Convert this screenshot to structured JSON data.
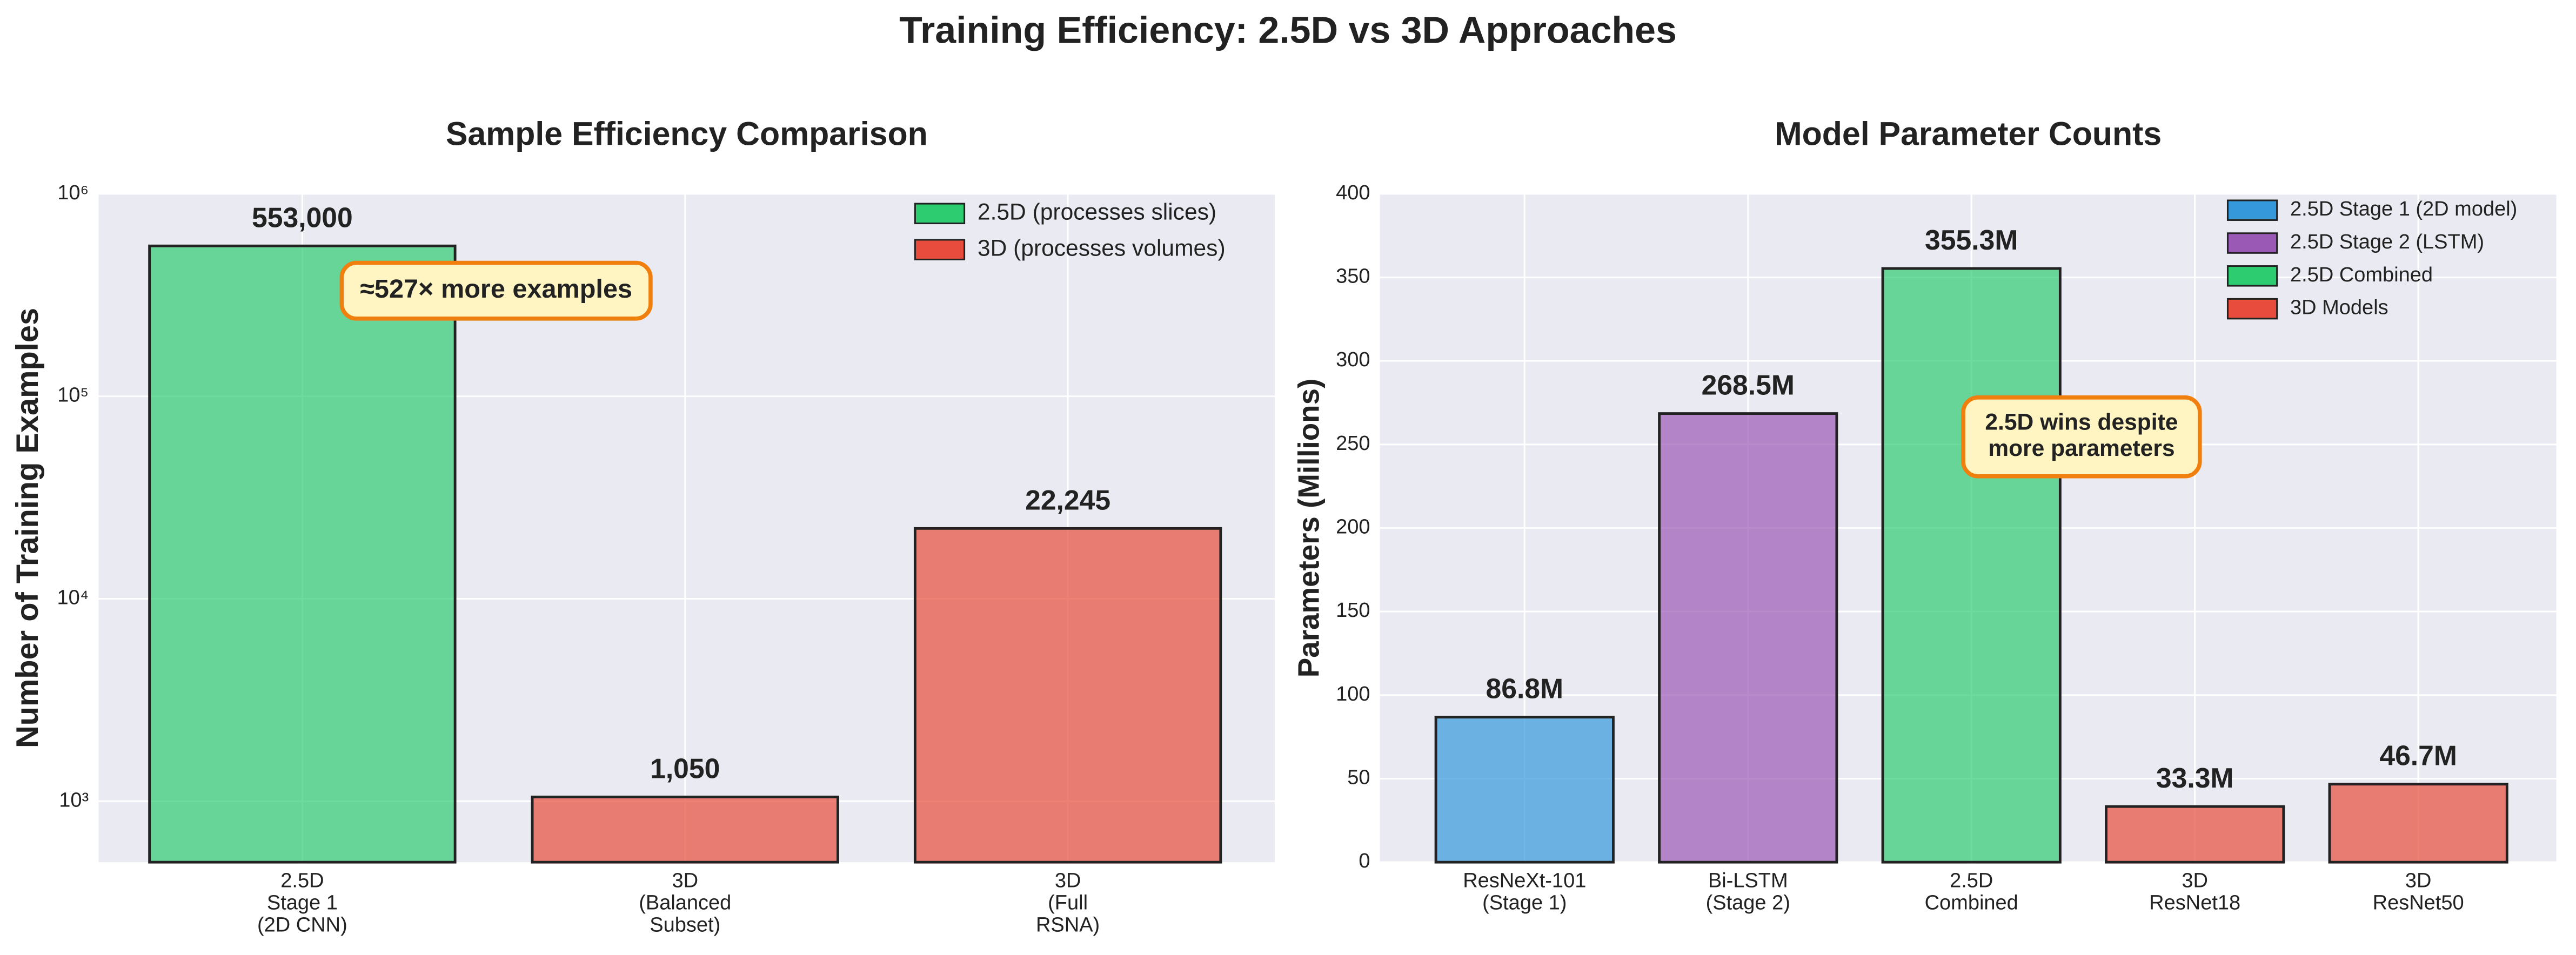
{
  "title": "Training Efficiency: 2.5D vs 3D Approaches",
  "chart_data": [
    {
      "type": "bar",
      "title": "Sample Efficiency Comparison",
      "ylabel": "Number of Training Examples",
      "yscale": "log",
      "ylim": [
        500,
        1000000
      ],
      "yticks": [
        {
          "value": 1000,
          "label": "10³"
        },
        {
          "value": 10000,
          "label": "10⁴"
        },
        {
          "value": 100000,
          "label": "10⁵"
        },
        {
          "value": 1000000,
          "label": "10⁶"
        }
      ],
      "grid": true,
      "legend": "upper right",
      "categories": [
        "2.5D\nStage 1\n(2D CNN)",
        "3D\n(Balanced\nSubset)",
        "3D\n(Full\nRSNA)"
      ],
      "series": [
        {
          "name": "2.5D (processes slices)",
          "color": "#2ecc71",
          "values": [
            553000,
            null,
            null
          ],
          "value_labels": [
            "553,000",
            null,
            null
          ]
        },
        {
          "name": "3D (processes volumes)",
          "color": "#e74c3c",
          "values": [
            null,
            1050,
            22245
          ],
          "value_labels": [
            null,
            "1,050",
            "22,245"
          ]
        }
      ],
      "annotation": "≈527× more examples"
    },
    {
      "type": "bar",
      "title": "Model Parameter Counts",
      "ylabel": "Parameters (Millions)",
      "ylim": [
        0,
        400
      ],
      "yticks": [
        0,
        50,
        100,
        150,
        200,
        250,
        300,
        350,
        400
      ],
      "grid": true,
      "legend": "upper right",
      "categories": [
        "ResNeXt-101\n(Stage 1)",
        "Bi-LSTM\n(Stage 2)",
        "2.5D\nCombined",
        "3D\nResNet18",
        "3D\nResNet50"
      ],
      "series": [
        {
          "name": "2.5D Stage 1 (2D model)",
          "color": "#3498db",
          "values": [
            86.8,
            null,
            null,
            null,
            null
          ],
          "value_labels": [
            "86.8M",
            null,
            null,
            null,
            null
          ]
        },
        {
          "name": "2.5D Stage 2 (LSTM)",
          "color": "#9b59b6",
          "values": [
            null,
            268.5,
            null,
            null,
            null
          ],
          "value_labels": [
            null,
            "268.5M",
            null,
            null,
            null
          ]
        },
        {
          "name": "2.5D Combined",
          "color": "#2ecc71",
          "values": [
            null,
            null,
            355.3,
            null,
            null
          ],
          "value_labels": [
            null,
            null,
            "355.3M",
            null,
            null
          ]
        },
        {
          "name": "3D Models",
          "color": "#e74c3c",
          "values": [
            null,
            null,
            null,
            33.3,
            46.7
          ],
          "value_labels": [
            null,
            null,
            null,
            "33.3M",
            "46.7M"
          ]
        }
      ],
      "annotation": "2.5D wins despite\nmore parameters"
    }
  ]
}
